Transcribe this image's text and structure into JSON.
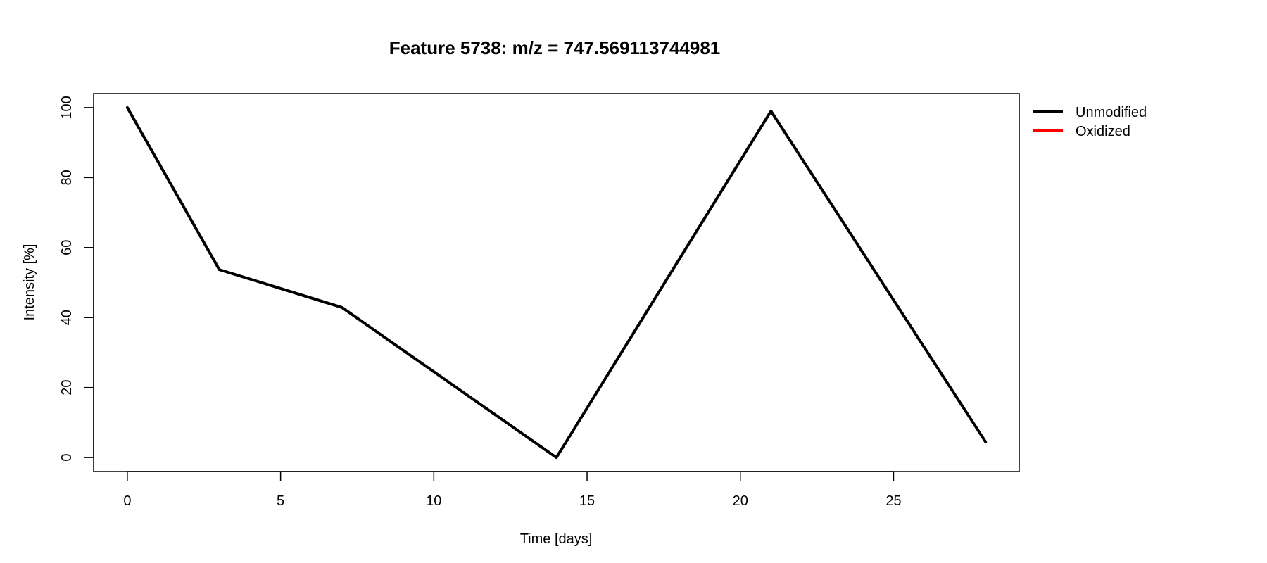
{
  "chart_data": {
    "type": "line",
    "title": "Feature 5738: m/z = 747.569113744981",
    "xlabel": "Time [days]",
    "ylabel": "Intensity [%]",
    "xlim": [
      -1.1,
      29.1
    ],
    "ylim": [
      -4,
      104
    ],
    "x_ticks": [
      0,
      5,
      10,
      15,
      20,
      25
    ],
    "y_ticks": [
      0,
      20,
      40,
      60,
      80,
      100
    ],
    "grid": false,
    "legend_placement": "outside-top-right",
    "series": [
      {
        "name": "Unmodified",
        "color": "#000000",
        "x": [
          0,
          3,
          7,
          14,
          21,
          28
        ],
        "y": [
          100,
          53.7,
          42.9,
          0,
          99,
          4.5
        ]
      },
      {
        "name": "Oxidized",
        "color": "#ff0000",
        "x": [],
        "y": []
      }
    ]
  }
}
